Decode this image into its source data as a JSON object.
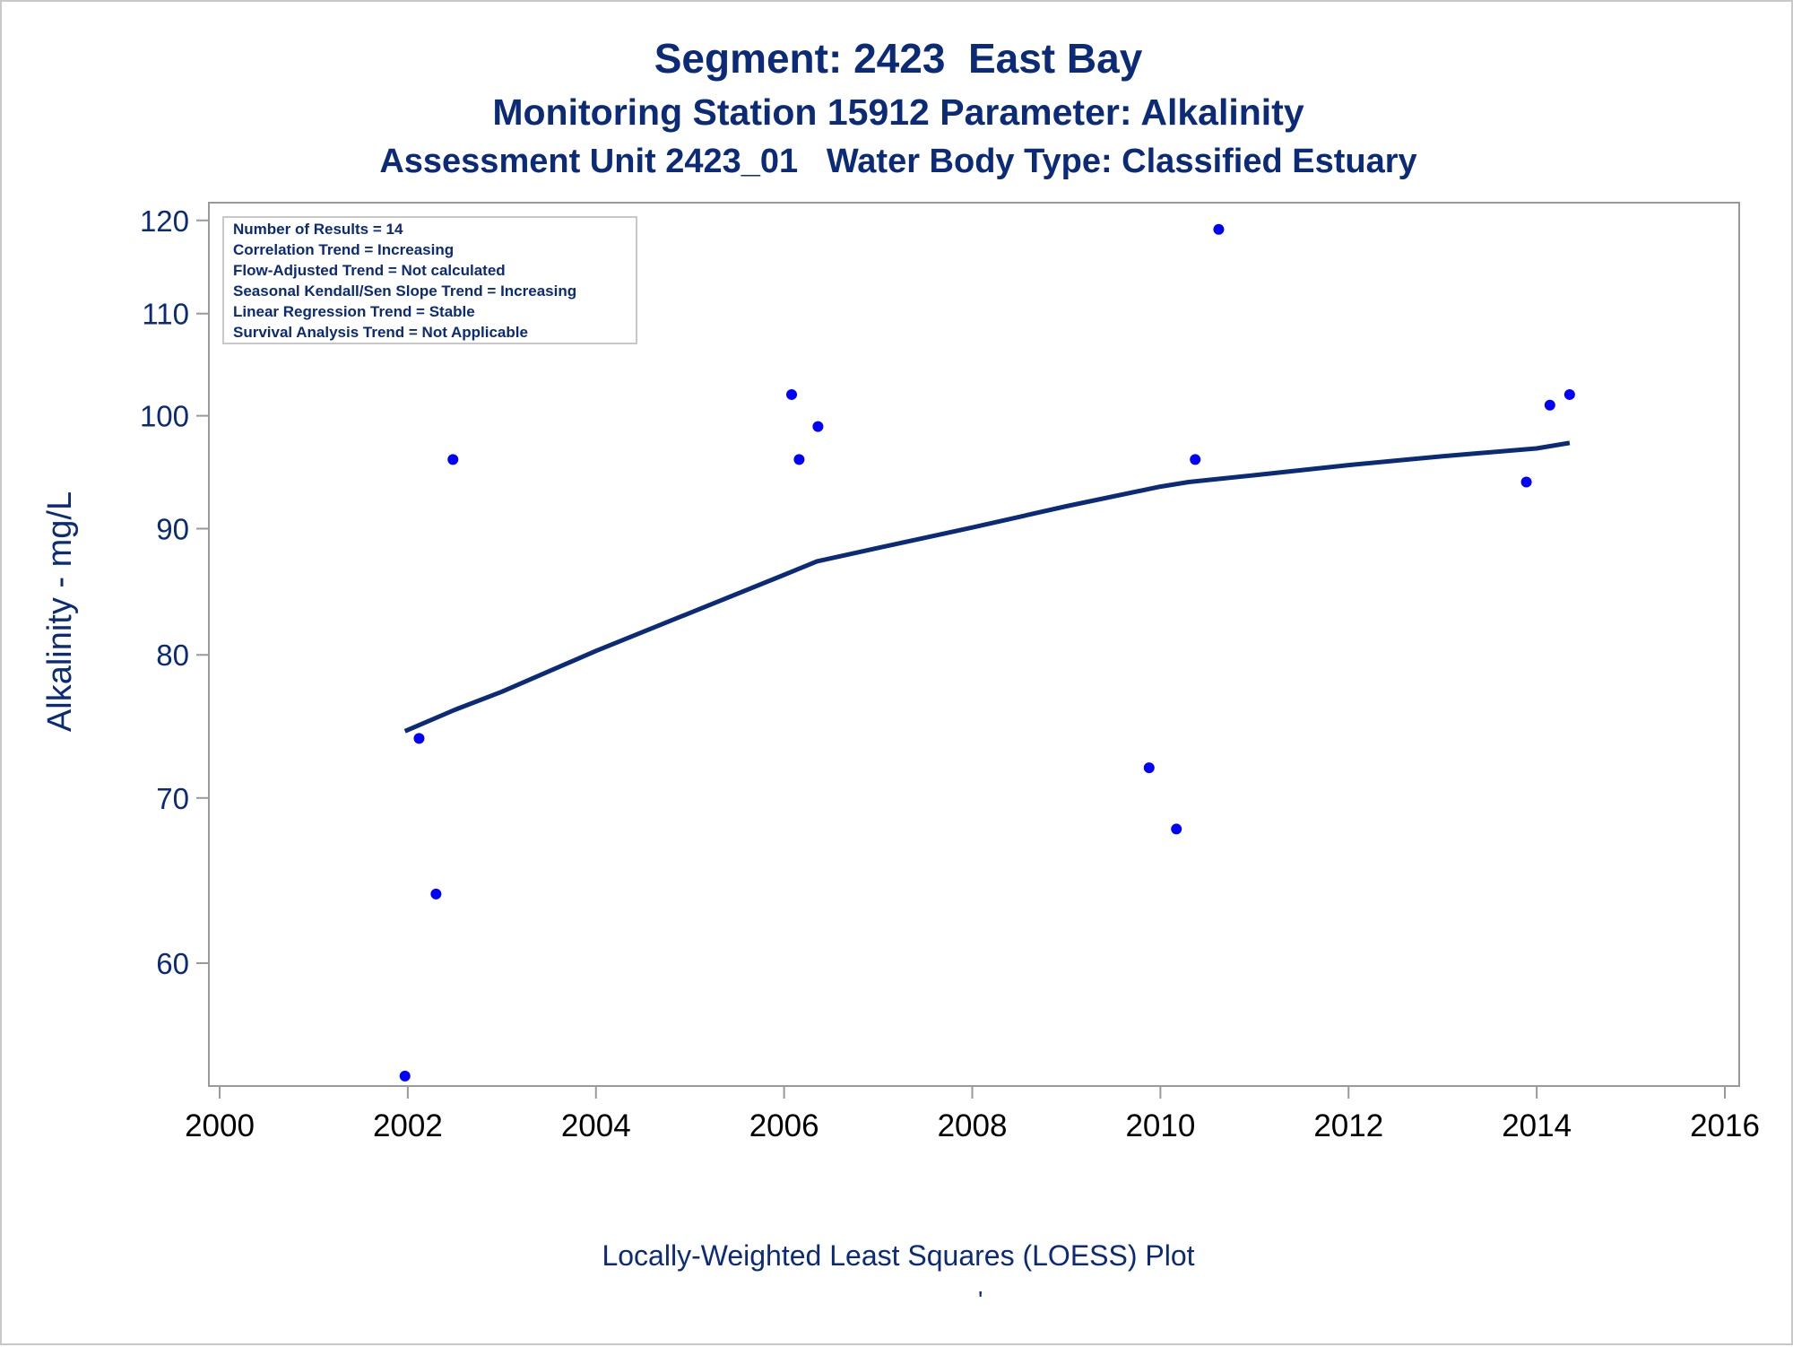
{
  "titles": {
    "line1": "Segment: 2423  East Bay",
    "line2": "Monitoring Station 15912 Parameter: Alkalinity",
    "line3": "Assessment Unit 2423_01   Water Body Type: Classified Estuary"
  },
  "inset": {
    "lines": [
      "Number of Results = 14",
      "Correlation Trend = Increasing",
      "Flow-Adjusted Trend = Not calculated",
      "Seasonal Kendall/Sen Slope Trend = Increasing",
      "Linear Regression Trend = Stable",
      "Survival Analysis Trend = Not Applicable"
    ]
  },
  "footnote": "Locally-Weighted Least Squares (LOESS) Plot",
  "footnote_mark": "'",
  "colors": {
    "text": "#0b2a78",
    "points": "#0000ff",
    "loess": "#0b2a78",
    "frame": "#999999"
  },
  "chart_data": {
    "type": "scatter",
    "ylabel": "Alkalinity - mg/L",
    "xlabel": "",
    "y_scale": "log",
    "xlim": [
      2000,
      2016
    ],
    "ylim": [
      53.5,
      122
    ],
    "x_ticks": [
      2000,
      2002,
      2004,
      2006,
      2008,
      2010,
      2012,
      2014,
      2016
    ],
    "y_ticks": [
      60,
      70,
      80,
      90,
      100,
      110,
      120
    ],
    "grid": false,
    "series": [
      {
        "kind": "points",
        "points": [
          {
            "x": 2001.97,
            "y": 54
          },
          {
            "x": 2002.12,
            "y": 74
          },
          {
            "x": 2002.3,
            "y": 64
          },
          {
            "x": 2002.48,
            "y": 96
          },
          {
            "x": 2006.08,
            "y": 102
          },
          {
            "x": 2006.16,
            "y": 96
          },
          {
            "x": 2006.36,
            "y": 99
          },
          {
            "x": 2009.88,
            "y": 72
          },
          {
            "x": 2010.17,
            "y": 68
          },
          {
            "x": 2010.37,
            "y": 96
          },
          {
            "x": 2010.62,
            "y": 119
          },
          {
            "x": 2013.89,
            "y": 94
          },
          {
            "x": 2014.14,
            "y": 101
          },
          {
            "x": 2014.35,
            "y": 102
          }
        ]
      },
      {
        "kind": "loess",
        "points": [
          {
            "x": 2001.97,
            "y": 74.5
          },
          {
            "x": 2002.5,
            "y": 76
          },
          {
            "x": 2003,
            "y": 77.3
          },
          {
            "x": 2004,
            "y": 80.3
          },
          {
            "x": 2005,
            "y": 83.2
          },
          {
            "x": 2006,
            "y": 86.2
          },
          {
            "x": 2006.35,
            "y": 87.3
          },
          {
            "x": 2007,
            "y": 88.4
          },
          {
            "x": 2008,
            "y": 90.1
          },
          {
            "x": 2009,
            "y": 91.9
          },
          {
            "x": 2010,
            "y": 93.6
          },
          {
            "x": 2010.3,
            "y": 94.0
          },
          {
            "x": 2011,
            "y": 94.6
          },
          {
            "x": 2012,
            "y": 95.5
          },
          {
            "x": 2013,
            "y": 96.3
          },
          {
            "x": 2014,
            "y": 97.0
          },
          {
            "x": 2014.35,
            "y": 97.5
          }
        ]
      }
    ]
  }
}
